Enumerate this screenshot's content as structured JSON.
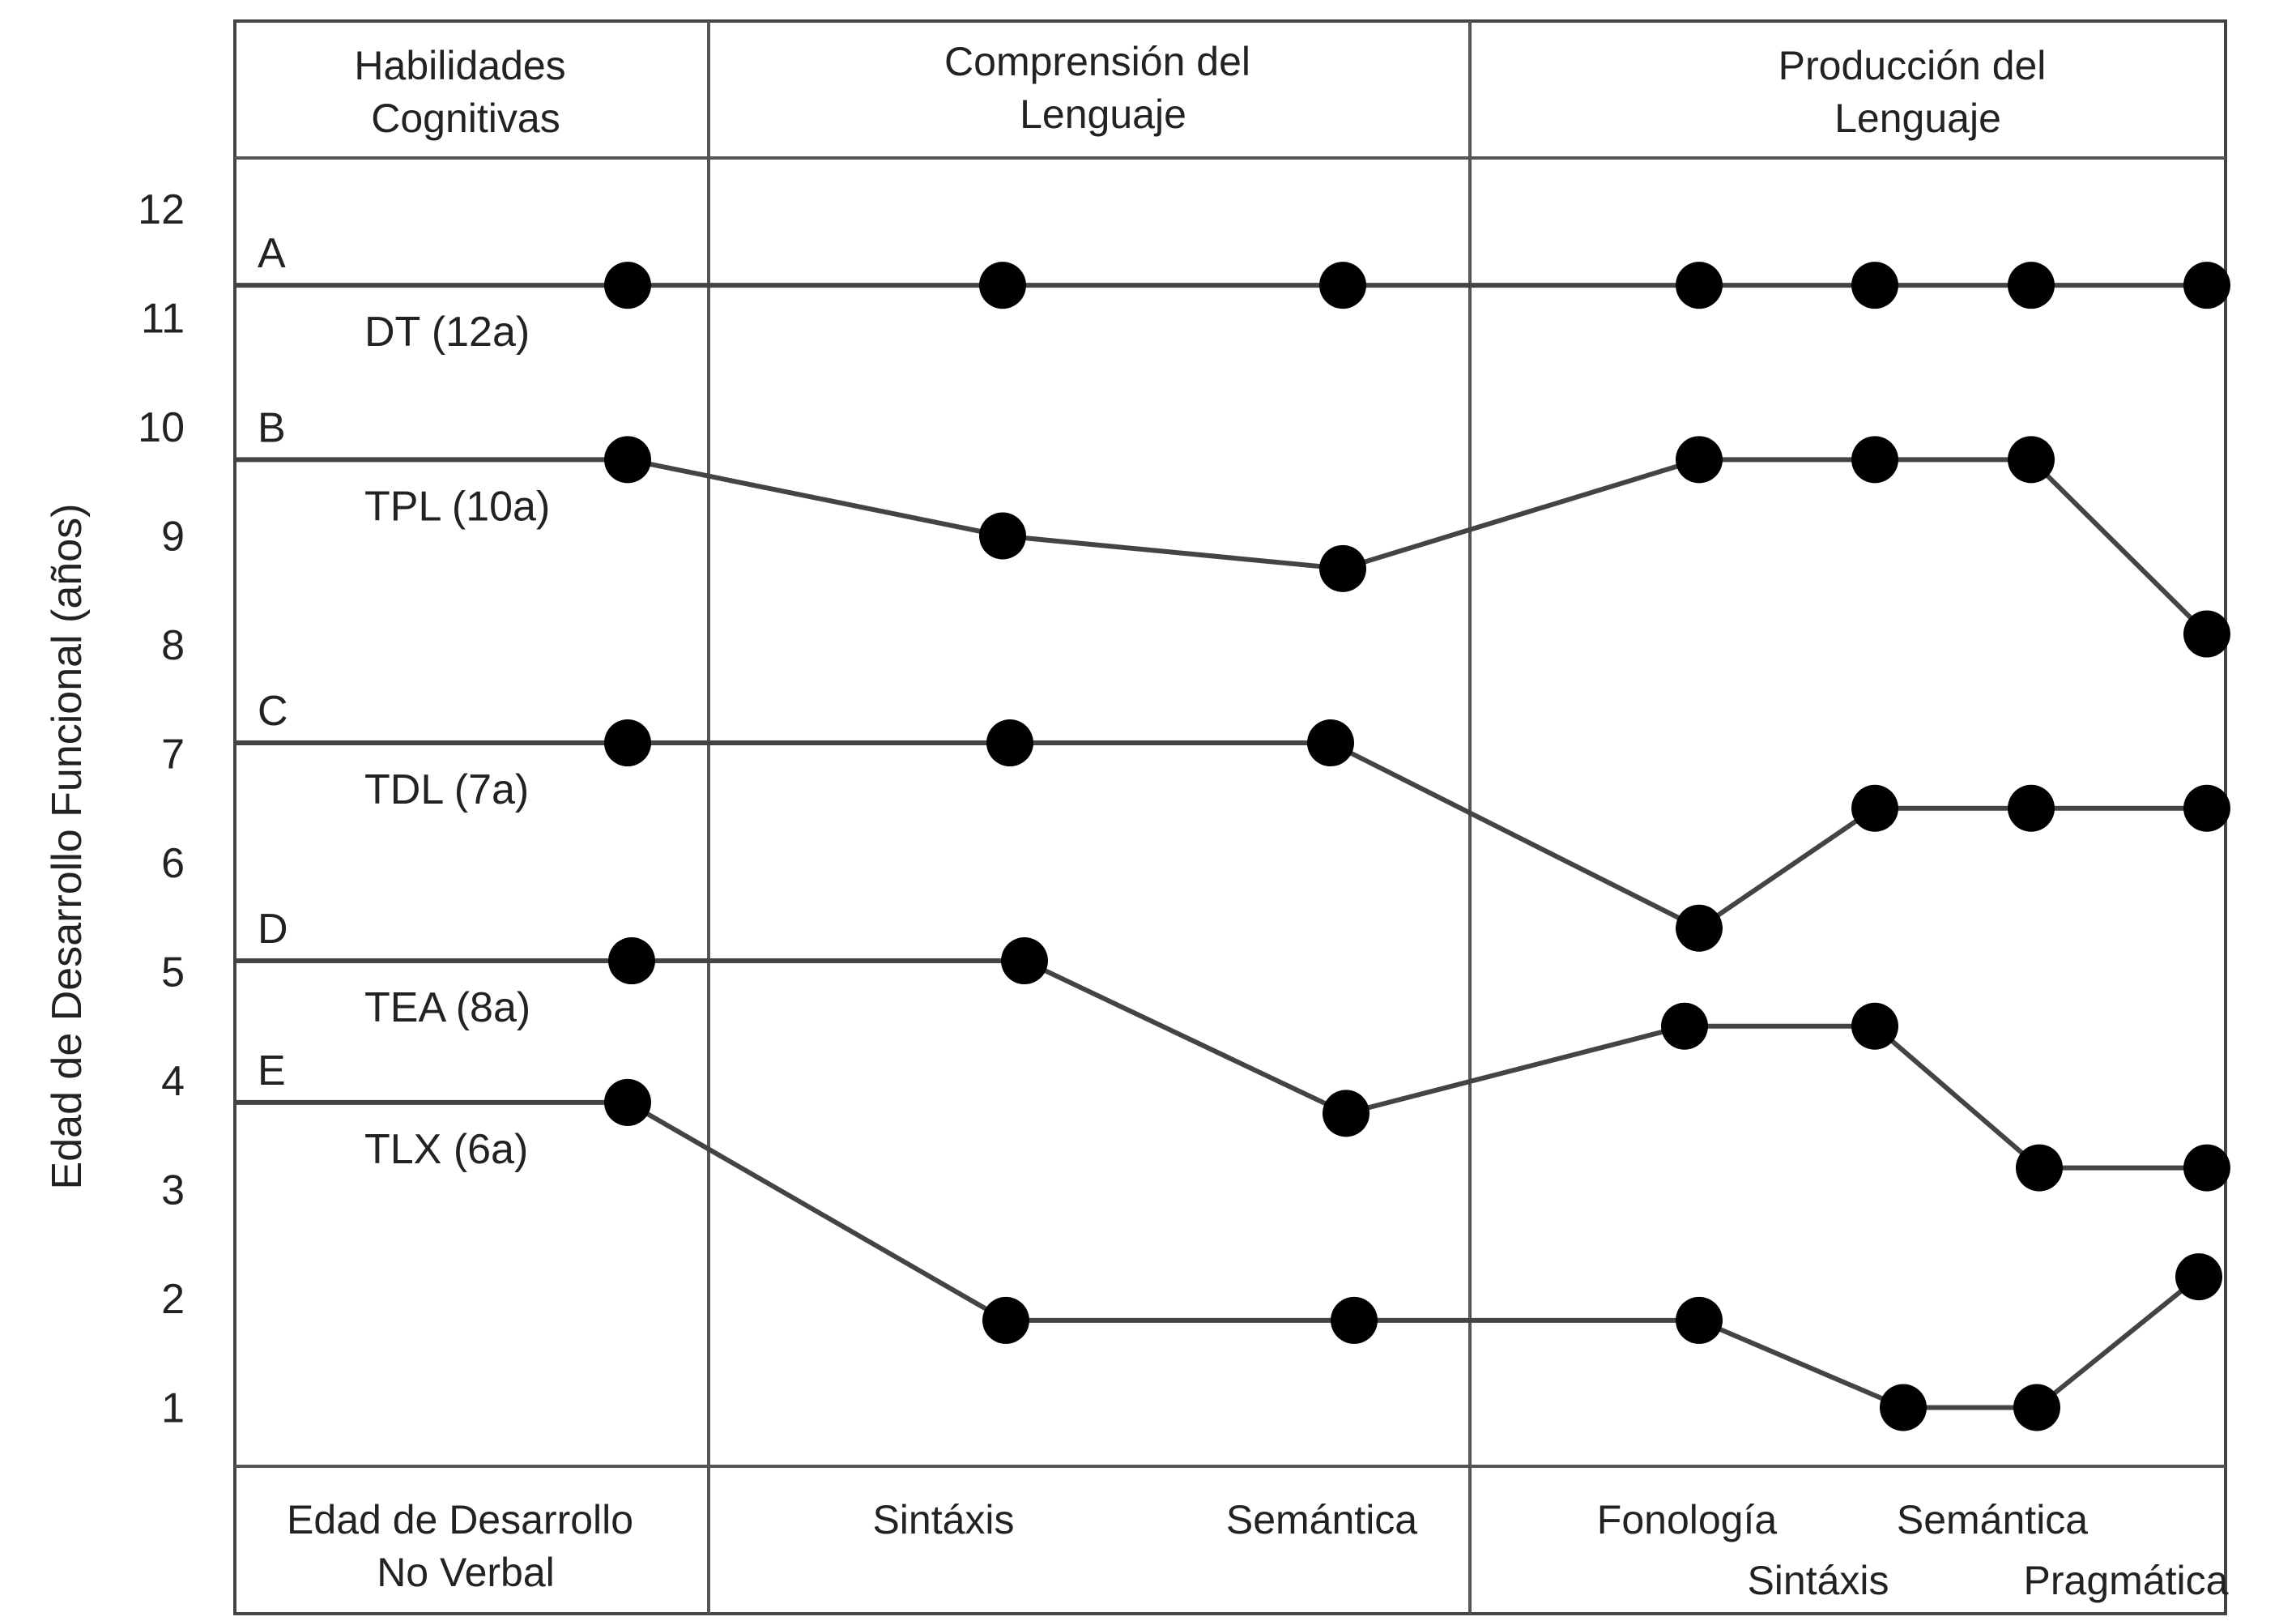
{
  "chart_data": {
    "type": "line",
    "ylabel": "Edad de Desarrollo Funcional (años)",
    "yticks": [
      1,
      2,
      3,
      4,
      5,
      6,
      7,
      8,
      9,
      10,
      11,
      12
    ],
    "ylim": [
      0,
      12.9
    ],
    "grid": false,
    "column_groups": [
      {
        "label_lines": [
          "Habilidades",
          "Cognitivas"
        ]
      },
      {
        "label_lines": [
          "Comprensión del",
          "Lenguaje"
        ]
      },
      {
        "label_lines": [
          "Producción del",
          "Lenguaje"
        ]
      }
    ],
    "bottom_labels": {
      "nonverbal": [
        "Edad de Desarrollo",
        "No Verbal"
      ],
      "comp_syntax": "Sintáxis",
      "comp_semantics": "Semántica",
      "phonology": "Fonología",
      "prod_syntax": "Sintáxis",
      "prod_semantics": "Semántica",
      "pragmatics": "Pragmática"
    },
    "categories": [
      "Edad de Desarrollo No Verbal",
      "Comprensión: Sintáxis",
      "Comprensión: Semántica",
      "Producción: Fonología",
      "Producción: Sintáxis",
      "Producción: Semántica",
      "Producción: Pragmática"
    ],
    "series": [
      {
        "name": "A",
        "group": "DT (12a)",
        "values": [
          11.3,
          11.3,
          11.3,
          11.3,
          11.3,
          11.3,
          11.3
        ]
      },
      {
        "name": "B",
        "group": "TPL (10a)",
        "values": [
          9.7,
          9.0,
          8.7,
          9.7,
          9.7,
          9.7,
          8.1
        ]
      },
      {
        "name": "C",
        "group": "TDL (7a)",
        "values": [
          7.1,
          7.1,
          7.1,
          5.4,
          6.5,
          6.5,
          6.5
        ]
      },
      {
        "name": "D",
        "group": "TEA (8a)",
        "values": [
          5.1,
          5.1,
          3.7,
          4.5,
          4.5,
          3.2,
          3.2
        ]
      },
      {
        "name": "E",
        "group": "TLX (6a)",
        "values": [
          3.8,
          1.8,
          1.8,
          1.8,
          1.0,
          1.0,
          2.2
        ]
      }
    ]
  }
}
